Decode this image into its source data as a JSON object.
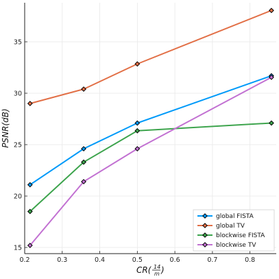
{
  "chart_data": {
    "type": "line",
    "xlabel_main": "CR(",
    "xlabel_num": "14",
    "xlabel_den": "m",
    "xlabel_close": ")",
    "ylabel": "PSNR(dB)",
    "xlim": [
      0.2,
      0.87
    ],
    "ylim": [
      14.4,
      38.8
    ],
    "xticks": [
      "0.2",
      "0.3",
      "0.4",
      "0.5",
      "0.6",
      "0.7",
      "0.8"
    ],
    "yticks": [
      "15",
      "20",
      "25",
      "30",
      "35"
    ],
    "grid": true,
    "legend_position": "bottom-right",
    "x": [
      0.2143,
      0.3571,
      0.5,
      0.8571
    ],
    "series": [
      {
        "name": "global FISTA",
        "color": "#009af9",
        "values": [
          21.1,
          24.6,
          27.1,
          31.7
        ]
      },
      {
        "name": "global TV",
        "color": "#e26f46",
        "values": [
          29.0,
          30.4,
          32.85,
          38.05
        ]
      },
      {
        "name": "blockwise FISTA",
        "color": "#3da44d",
        "values": [
          18.5,
          23.3,
          26.35,
          27.1
        ]
      },
      {
        "name": "blockwise TV",
        "color": "#c271d2",
        "values": [
          15.2,
          21.4,
          24.6,
          31.55
        ]
      }
    ],
    "marker": "diamond"
  }
}
